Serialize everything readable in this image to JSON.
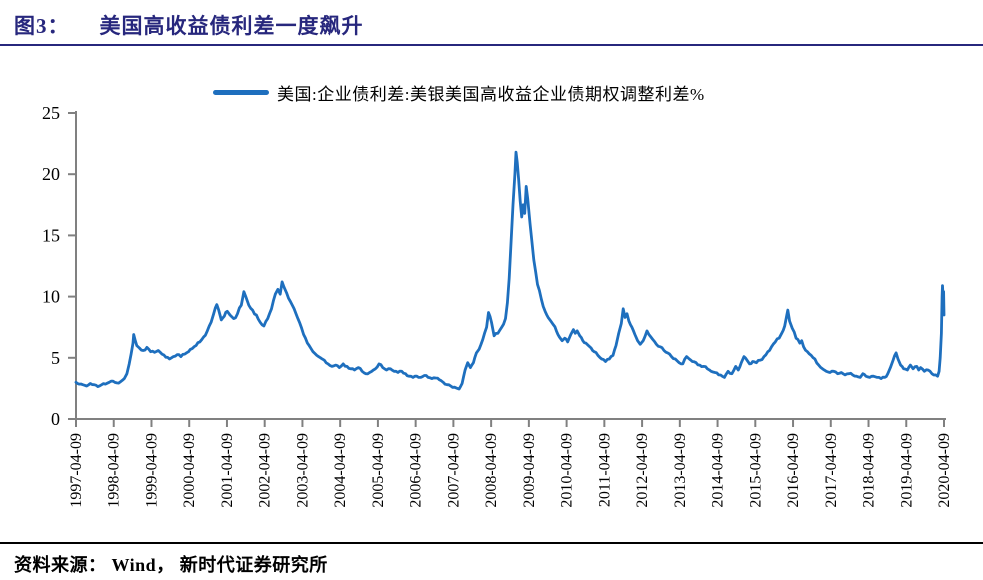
{
  "figure": {
    "label": "图3：",
    "title": "美国高收益债利差一度飙升"
  },
  "legend": {
    "label": "美国:企业债利差:美银美国高收益企业债期权调整利差%"
  },
  "source": {
    "text": "资料来源： Wind， 新时代证券研究所"
  },
  "colors": {
    "line": "#1E6FBE",
    "title": "#27277D",
    "rule_top": "#27277D",
    "axis": "#808080",
    "tick_text": "#000000"
  },
  "chart_data": {
    "type": "line",
    "title": "",
    "series_name": "美国:企业债利差:美银美国高收益企业债期权调整利差%",
    "legend_position": "top",
    "grid": false,
    "ylabel": "",
    "xlabel": "",
    "ylim": [
      0,
      25
    ],
    "y_ticks": [
      0,
      5,
      10,
      15,
      20,
      25
    ],
    "xlim": [
      1997.27,
      2020.27
    ],
    "x_tick_values": [
      1997.27,
      1998.27,
      1999.27,
      2000.27,
      2001.27,
      2002.27,
      2003.27,
      2004.27,
      2005.27,
      2006.27,
      2007.27,
      2008.27,
      2009.27,
      2010.27,
      2011.27,
      2012.27,
      2013.27,
      2014.27,
      2015.27,
      2016.27,
      2017.27,
      2018.27,
      2019.27,
      2020.27
    ],
    "x_tick_labels": [
      "1997-04-09",
      "1998-04-09",
      "1999-04-09",
      "2000-04-09",
      "2001-04-09",
      "2002-04-09",
      "2003-04-09",
      "2004-04-09",
      "2005-04-09",
      "2006-04-09",
      "2007-04-09",
      "2008-04-09",
      "2009-04-09",
      "2010-04-09",
      "2011-04-09",
      "2012-04-09",
      "2013-04-09",
      "2014-04-09",
      "2015-04-09",
      "2016-04-09",
      "2017-04-09",
      "2018-04-09",
      "2019-04-09",
      "2020-04-09"
    ],
    "points": [
      [
        1997.27,
        3.0
      ],
      [
        1997.35,
        2.85
      ],
      [
        1997.45,
        2.8
      ],
      [
        1997.55,
        2.7
      ],
      [
        1997.65,
        2.9
      ],
      [
        1997.75,
        2.8
      ],
      [
        1997.85,
        2.65
      ],
      [
        1997.95,
        2.8
      ],
      [
        1998.05,
        2.85
      ],
      [
        1998.15,
        3.0
      ],
      [
        1998.25,
        3.1
      ],
      [
        1998.35,
        2.95
      ],
      [
        1998.45,
        3.05
      ],
      [
        1998.55,
        3.3
      ],
      [
        1998.62,
        3.7
      ],
      [
        1998.68,
        4.5
      ],
      [
        1998.73,
        5.3
      ],
      [
        1998.78,
        6.2
      ],
      [
        1998.8,
        6.9
      ],
      [
        1998.84,
        6.4
      ],
      [
        1998.88,
        6.0
      ],
      [
        1998.95,
        5.8
      ],
      [
        1999.05,
        5.6
      ],
      [
        1999.15,
        5.85
      ],
      [
        1999.25,
        5.5
      ],
      [
        1999.35,
        5.45
      ],
      [
        1999.45,
        5.6
      ],
      [
        1999.55,
        5.3
      ],
      [
        1999.65,
        5.05
      ],
      [
        1999.75,
        4.9
      ],
      [
        1999.85,
        5.1
      ],
      [
        1999.95,
        5.25
      ],
      [
        2000.05,
        5.1
      ],
      [
        2000.15,
        5.3
      ],
      [
        2000.25,
        5.5
      ],
      [
        2000.35,
        5.75
      ],
      [
        2000.45,
        6.0
      ],
      [
        2000.55,
        6.3
      ],
      [
        2000.65,
        6.7
      ],
      [
        2000.75,
        7.2
      ],
      [
        2000.85,
        7.9
      ],
      [
        2000.92,
        8.6
      ],
      [
        2001.0,
        9.35
      ],
      [
        2001.05,
        8.9
      ],
      [
        2001.12,
        8.1
      ],
      [
        2001.2,
        8.4
      ],
      [
        2001.28,
        8.8
      ],
      [
        2001.35,
        8.5
      ],
      [
        2001.45,
        8.2
      ],
      [
        2001.55,
        8.6
      ],
      [
        2001.65,
        9.3
      ],
      [
        2001.72,
        10.4
      ],
      [
        2001.78,
        9.9
      ],
      [
        2001.85,
        9.3
      ],
      [
        2001.95,
        8.9
      ],
      [
        2002.05,
        8.5
      ],
      [
        2002.15,
        7.9
      ],
      [
        2002.25,
        7.6
      ],
      [
        2002.35,
        8.2
      ],
      [
        2002.45,
        9.0
      ],
      [
        2002.55,
        10.2
      ],
      [
        2002.62,
        10.6
      ],
      [
        2002.68,
        10.2
      ],
      [
        2002.73,
        11.2
      ],
      [
        2002.78,
        10.8
      ],
      [
        2002.85,
        10.3
      ],
      [
        2002.95,
        9.6
      ],
      [
        2003.05,
        9.0
      ],
      [
        2003.15,
        8.2
      ],
      [
        2003.25,
        7.4
      ],
      [
        2003.35,
        6.6
      ],
      [
        2003.45,
        6.0
      ],
      [
        2003.55,
        5.5
      ],
      [
        2003.65,
        5.2
      ],
      [
        2003.75,
        5.0
      ],
      [
        2003.85,
        4.8
      ],
      [
        2003.95,
        4.5
      ],
      [
        2004.05,
        4.3
      ],
      [
        2004.15,
        4.4
      ],
      [
        2004.25,
        4.2
      ],
      [
        2004.35,
        4.5
      ],
      [
        2004.45,
        4.3
      ],
      [
        2004.55,
        4.1
      ],
      [
        2004.65,
        4.0
      ],
      [
        2004.75,
        4.2
      ],
      [
        2004.85,
        3.9
      ],
      [
        2004.95,
        3.7
      ],
      [
        2005.05,
        3.8
      ],
      [
        2005.15,
        4.0
      ],
      [
        2005.3,
        4.5
      ],
      [
        2005.4,
        4.2
      ],
      [
        2005.5,
        4.0
      ],
      [
        2005.6,
        4.1
      ],
      [
        2005.7,
        3.9
      ],
      [
        2005.8,
        3.8
      ],
      [
        2005.9,
        3.9
      ],
      [
        2006.0,
        3.7
      ],
      [
        2006.1,
        3.5
      ],
      [
        2006.2,
        3.4
      ],
      [
        2006.3,
        3.5
      ],
      [
        2006.4,
        3.4
      ],
      [
        2006.5,
        3.55
      ],
      [
        2006.6,
        3.4
      ],
      [
        2006.7,
        3.3
      ],
      [
        2006.8,
        3.35
      ],
      [
        2006.9,
        3.2
      ],
      [
        2007.0,
        3.0
      ],
      [
        2007.1,
        2.8
      ],
      [
        2007.2,
        2.7
      ],
      [
        2007.3,
        2.6
      ],
      [
        2007.42,
        2.45
      ],
      [
        2007.5,
        2.9
      ],
      [
        2007.58,
        4.0
      ],
      [
        2007.65,
        4.6
      ],
      [
        2007.72,
        4.2
      ],
      [
        2007.8,
        4.6
      ],
      [
        2007.88,
        5.4
      ],
      [
        2007.95,
        5.7
      ],
      [
        2008.05,
        6.5
      ],
      [
        2008.15,
        7.5
      ],
      [
        2008.2,
        8.7
      ],
      [
        2008.28,
        7.9
      ],
      [
        2008.35,
        6.8
      ],
      [
        2008.45,
        7.0
      ],
      [
        2008.55,
        7.5
      ],
      [
        2008.65,
        8.2
      ],
      [
        2008.7,
        9.5
      ],
      [
        2008.75,
        11.5
      ],
      [
        2008.8,
        14.5
      ],
      [
        2008.85,
        17.5
      ],
      [
        2008.9,
        20.0
      ],
      [
        2008.93,
        21.8
      ],
      [
        2008.96,
        21.0
      ],
      [
        2009.0,
        19.5
      ],
      [
        2009.04,
        17.8
      ],
      [
        2009.08,
        16.5
      ],
      [
        2009.12,
        17.5
      ],
      [
        2009.16,
        16.8
      ],
      [
        2009.2,
        19.0
      ],
      [
        2009.24,
        18.0
      ],
      [
        2009.3,
        16.0
      ],
      [
        2009.35,
        14.5
      ],
      [
        2009.4,
        13.0
      ],
      [
        2009.45,
        12.0
      ],
      [
        2009.5,
        11.0
      ],
      [
        2009.55,
        10.5
      ],
      [
        2009.6,
        9.8
      ],
      [
        2009.65,
        9.2
      ],
      [
        2009.7,
        8.8
      ],
      [
        2009.78,
        8.3
      ],
      [
        2009.85,
        8.0
      ],
      [
        2009.92,
        7.7
      ],
      [
        2010.0,
        7.2
      ],
      [
        2010.08,
        6.7
      ],
      [
        2010.15,
        6.4
      ],
      [
        2010.22,
        6.6
      ],
      [
        2010.3,
        6.3
      ],
      [
        2010.38,
        6.9
      ],
      [
        2010.45,
        7.3
      ],
      [
        2010.5,
        7.0
      ],
      [
        2010.55,
        7.2
      ],
      [
        2010.62,
        6.8
      ],
      [
        2010.7,
        6.4
      ],
      [
        2010.78,
        6.2
      ],
      [
        2010.85,
        6.0
      ],
      [
        2010.92,
        5.8
      ],
      [
        2011.0,
        5.5
      ],
      [
        2011.1,
        5.2
      ],
      [
        2011.2,
        4.9
      ],
      [
        2011.3,
        4.7
      ],
      [
        2011.4,
        4.9
      ],
      [
        2011.5,
        5.2
      ],
      [
        2011.58,
        6.0
      ],
      [
        2011.65,
        7.0
      ],
      [
        2011.72,
        7.8
      ],
      [
        2011.77,
        9.0
      ],
      [
        2011.82,
        8.3
      ],
      [
        2011.87,
        8.6
      ],
      [
        2011.92,
        8.0
      ],
      [
        2012.0,
        7.5
      ],
      [
        2012.08,
        6.9
      ],
      [
        2012.15,
        6.4
      ],
      [
        2012.22,
        6.1
      ],
      [
        2012.3,
        6.4
      ],
      [
        2012.4,
        7.2
      ],
      [
        2012.45,
        6.9
      ],
      [
        2012.55,
        6.5
      ],
      [
        2012.65,
        6.1
      ],
      [
        2012.75,
        5.9
      ],
      [
        2012.85,
        5.6
      ],
      [
        2012.95,
        5.4
      ],
      [
        2013.05,
        5.1
      ],
      [
        2013.15,
        4.9
      ],
      [
        2013.25,
        4.6
      ],
      [
        2013.35,
        4.5
      ],
      [
        2013.45,
        5.1
      ],
      [
        2013.52,
        4.9
      ],
      [
        2013.6,
        4.7
      ],
      [
        2013.7,
        4.6
      ],
      [
        2013.8,
        4.4
      ],
      [
        2013.9,
        4.3
      ],
      [
        2014.0,
        4.1
      ],
      [
        2014.1,
        3.9
      ],
      [
        2014.2,
        3.8
      ],
      [
        2014.3,
        3.6
      ],
      [
        2014.45,
        3.4
      ],
      [
        2014.55,
        3.9
      ],
      [
        2014.65,
        3.7
      ],
      [
        2014.75,
        4.3
      ],
      [
        2014.82,
        4.0
      ],
      [
        2014.9,
        4.6
      ],
      [
        2014.97,
        5.1
      ],
      [
        2015.05,
        4.8
      ],
      [
        2015.12,
        4.5
      ],
      [
        2015.2,
        4.7
      ],
      [
        2015.3,
        4.6
      ],
      [
        2015.4,
        4.8
      ],
      [
        2015.5,
        5.1
      ],
      [
        2015.6,
        5.5
      ],
      [
        2015.7,
        5.9
      ],
      [
        2015.8,
        6.3
      ],
      [
        2015.9,
        6.6
      ],
      [
        2015.97,
        7.0
      ],
      [
        2016.05,
        7.6
      ],
      [
        2016.1,
        8.4
      ],
      [
        2016.13,
        8.9
      ],
      [
        2016.18,
        8.0
      ],
      [
        2016.25,
        7.4
      ],
      [
        2016.35,
        6.6
      ],
      [
        2016.45,
        6.2
      ],
      [
        2016.5,
        6.4
      ],
      [
        2016.55,
        5.9
      ],
      [
        2016.65,
        5.5
      ],
      [
        2016.75,
        5.2
      ],
      [
        2016.85,
        4.9
      ],
      [
        2016.95,
        4.4
      ],
      [
        2017.05,
        4.1
      ],
      [
        2017.15,
        3.9
      ],
      [
        2017.25,
        3.8
      ],
      [
        2017.35,
        3.9
      ],
      [
        2017.45,
        3.7
      ],
      [
        2017.55,
        3.8
      ],
      [
        2017.65,
        3.6
      ],
      [
        2017.75,
        3.7
      ],
      [
        2017.85,
        3.6
      ],
      [
        2017.95,
        3.5
      ],
      [
        2018.05,
        3.4
      ],
      [
        2018.12,
        3.7
      ],
      [
        2018.2,
        3.5
      ],
      [
        2018.3,
        3.4
      ],
      [
        2018.4,
        3.5
      ],
      [
        2018.5,
        3.4
      ],
      [
        2018.6,
        3.3
      ],
      [
        2018.7,
        3.4
      ],
      [
        2018.78,
        3.7
      ],
      [
        2018.85,
        4.2
      ],
      [
        2018.92,
        4.8
      ],
      [
        2019.0,
        5.4
      ],
      [
        2019.05,
        4.9
      ],
      [
        2019.12,
        4.4
      ],
      [
        2019.2,
        4.1
      ],
      [
        2019.3,
        4.0
      ],
      [
        2019.38,
        4.4
      ],
      [
        2019.45,
        4.1
      ],
      [
        2019.55,
        4.3
      ],
      [
        2019.6,
        4.0
      ],
      [
        2019.65,
        4.2
      ],
      [
        2019.75,
        3.9
      ],
      [
        2019.85,
        4.0
      ],
      [
        2019.95,
        3.7
      ],
      [
        2020.05,
        3.6
      ],
      [
        2020.1,
        3.5
      ],
      [
        2020.14,
        3.9
      ],
      [
        2020.17,
        5.0
      ],
      [
        2020.2,
        7.0
      ],
      [
        2020.22,
        10.0
      ],
      [
        2020.23,
        10.9
      ],
      [
        2020.25,
        9.7
      ],
      [
        2020.26,
        10.4
      ],
      [
        2020.27,
        8.5
      ]
    ]
  }
}
